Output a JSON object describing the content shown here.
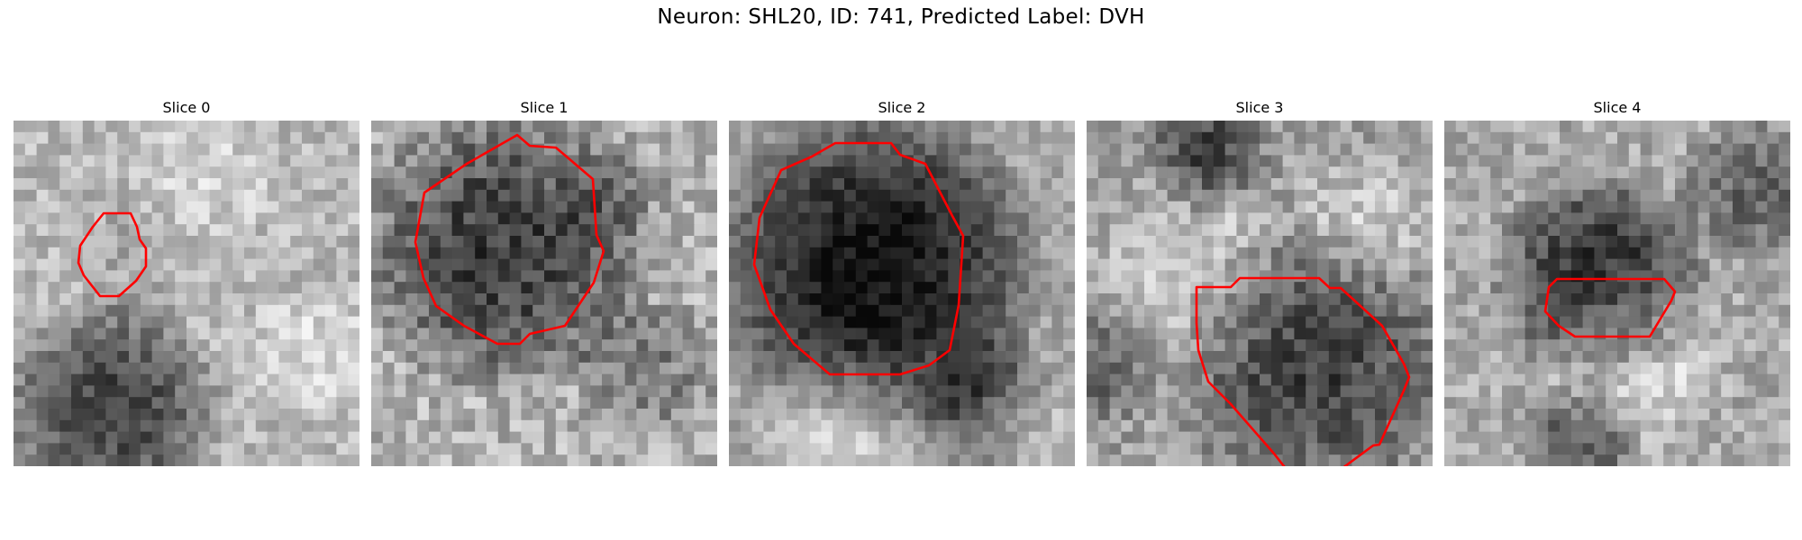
{
  "figure": {
    "title": "Neuron: SHL20, ID: 741, Predicted Label: DVH",
    "contour_color": "#ff0000"
  },
  "panels": [
    {
      "title": "Slice 0",
      "image": "grayscale image slice with faint round cell outlined",
      "contour": "red-outline"
    },
    {
      "title": "Slice 1",
      "image": "grayscale image slice with dark round cell outlined",
      "contour": "red-outline"
    },
    {
      "title": "Slice 2",
      "image": "grayscale image slice with very dark round cell outlined",
      "contour": "red-outline"
    },
    {
      "title": "Slice 3",
      "image": "grayscale image slice with dark irregular cell outlined",
      "contour": "red-outline"
    },
    {
      "title": "Slice 4",
      "image": "grayscale image slice with small dark cell partially outlined",
      "contour": "red-outline"
    }
  ]
}
